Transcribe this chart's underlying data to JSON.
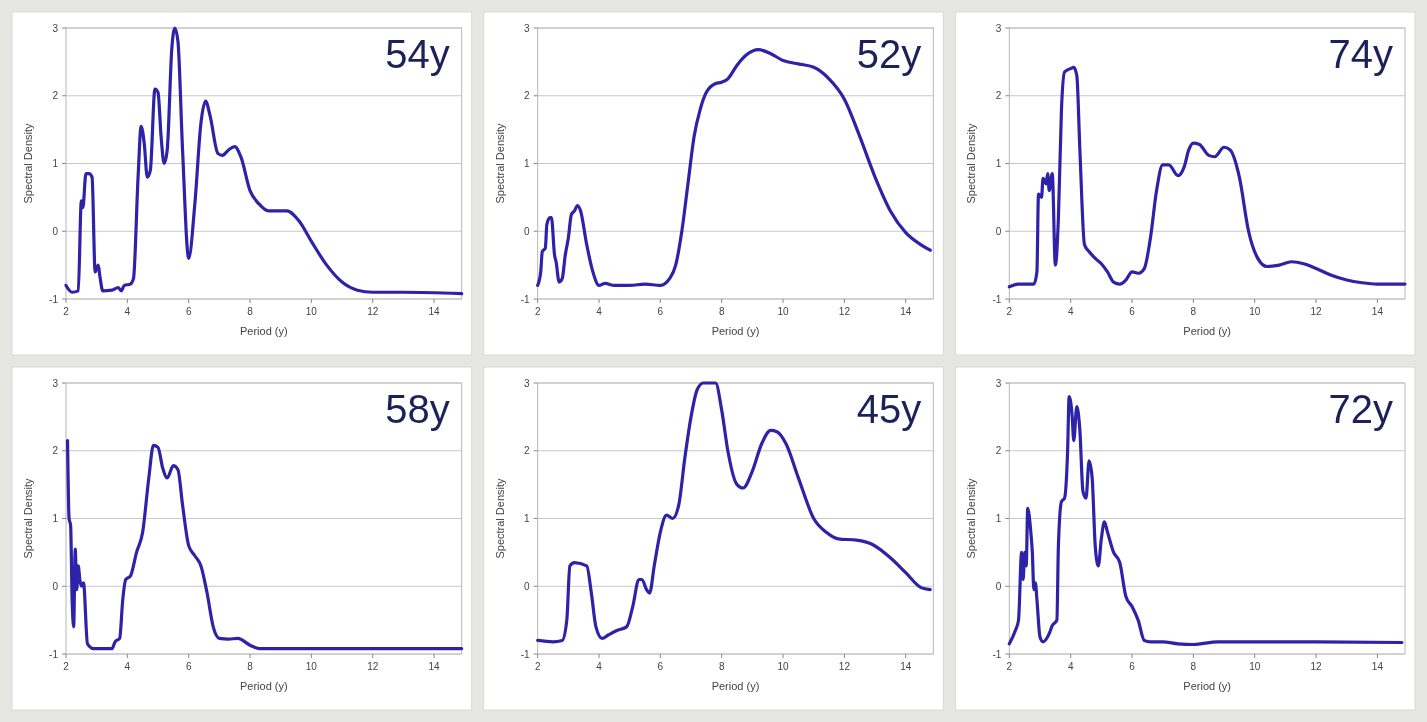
{
  "chart_data": [
    {
      "type": "line",
      "title": "54y",
      "xlabel": "Period (y)",
      "ylabel": "Spectral Density",
      "xlim": [
        2,
        14.9
      ],
      "xticks": [
        2,
        4,
        6,
        8,
        10,
        12,
        14
      ],
      "ylim": [
        -1,
        3
      ],
      "yticks": [
        -1,
        0,
        1,
        2,
        3
      ],
      "grid": "y",
      "line_style": "solid",
      "series": [
        {
          "color": "#2e22a8",
          "x": [
            2,
            2.2,
            2.4,
            2.5,
            2.55,
            2.65,
            2.75,
            2.85,
            2.95,
            3.05,
            3.1,
            3.2,
            3.5,
            3.7,
            3.8,
            3.9,
            4.1,
            4.2,
            4.35,
            4.45,
            4.55,
            4.65,
            4.75,
            4.9,
            5,
            5.1,
            5.2,
            5.3,
            5.45,
            5.55,
            5.65,
            5.8,
            6,
            6.2,
            6.4,
            6.55,
            6.7,
            6.95,
            7.1,
            7.3,
            7.5,
            7.7,
            8,
            8.3,
            8.6,
            9.2,
            9.6,
            10,
            10.5,
            11,
            11.5,
            12,
            13,
            14.9
          ],
          "values": [
            -0.8,
            -0.9,
            -0.88,
            0.45,
            0.35,
            0.85,
            0.85,
            0.8,
            -0.6,
            -0.5,
            -0.65,
            -0.88,
            -0.87,
            -0.83,
            -0.88,
            -0.8,
            -0.78,
            -0.7,
            0.8,
            1.55,
            1.3,
            0.8,
            0.9,
            2.1,
            2.05,
            1.4,
            1,
            1.2,
            2.7,
            3,
            2.8,
            1.2,
            -0.4,
            0.4,
            1.6,
            1.92,
            1.7,
            1.15,
            1.12,
            1.2,
            1.25,
            1.1,
            0.6,
            0.4,
            0.3,
            0.3,
            0.15,
            -0.15,
            -0.5,
            -0.75,
            -0.87,
            -0.9,
            -0.9,
            -0.92
          ]
        }
      ]
    },
    {
      "type": "line",
      "title": "52y",
      "xlabel": "Period (y)",
      "ylabel": "Spectral Density",
      "xlim": [
        2,
        14.9
      ],
      "xticks": [
        2,
        4,
        6,
        8,
        10,
        12,
        14
      ],
      "ylim": [
        -1,
        3
      ],
      "yticks": [
        -1,
        0,
        1,
        2,
        3
      ],
      "grid": "y",
      "line_style": "solid",
      "series": [
        {
          "color": "#2e22a8",
          "x": [
            2,
            2.1,
            2.15,
            2.25,
            2.3,
            2.4,
            2.45,
            2.55,
            2.6,
            2.7,
            2.8,
            2.9,
            3,
            3.1,
            3.2,
            3.3,
            3.4,
            3.6,
            3.8,
            4,
            4.2,
            4.5,
            5,
            5.5,
            6,
            6.3,
            6.5,
            6.7,
            6.9,
            7.1,
            7.3,
            7.5,
            7.8,
            8,
            8.2,
            8.5,
            8.8,
            9.2,
            9.6,
            10,
            10.5,
            11,
            11.5,
            12,
            12.5,
            13,
            13.5,
            14,
            14.5,
            14.8
          ],
          "values": [
            -0.8,
            -0.6,
            -0.3,
            -0.25,
            0.1,
            0.2,
            0.2,
            -0.35,
            -0.45,
            -0.75,
            -0.7,
            -0.35,
            -0.1,
            0.25,
            0.3,
            0.38,
            0.3,
            -0.2,
            -0.6,
            -0.8,
            -0.77,
            -0.8,
            -0.8,
            -0.78,
            -0.8,
            -0.7,
            -0.5,
            0,
            0.7,
            1.4,
            1.8,
            2.05,
            2.18,
            2.2,
            2.25,
            2.45,
            2.6,
            2.68,
            2.62,
            2.52,
            2.47,
            2.42,
            2.25,
            1.95,
            1.4,
            0.8,
            0.3,
            -0.02,
            -0.2,
            -0.28
          ]
        }
      ]
    },
    {
      "type": "line",
      "title": "74y",
      "xlabel": "Period (y)",
      "ylabel": "Spectral Density",
      "xlim": [
        2,
        14.9
      ],
      "xticks": [
        2,
        4,
        6,
        8,
        10,
        12,
        14
      ],
      "ylim": [
        -1,
        3
      ],
      "yticks": [
        -1,
        0,
        1,
        2,
        3
      ],
      "grid": "y",
      "line_style": "solid",
      "series": [
        {
          "color": "#2e22a8",
          "x": [
            2,
            2.3,
            2.8,
            2.9,
            2.95,
            3.05,
            3.1,
            3.2,
            3.25,
            3.3,
            3.4,
            3.5,
            3.6,
            3.7,
            3.8,
            4,
            4.1,
            4.2,
            4.3,
            4.45,
            4.6,
            4.8,
            5,
            5.2,
            5.4,
            5.6,
            5.8,
            6,
            6.2,
            6.4,
            6.6,
            6.8,
            7,
            7.2,
            7.5,
            7.7,
            7.85,
            8,
            8.2,
            8.5,
            8.7,
            9,
            9.2,
            9.5,
            9.8,
            10.1,
            10.4,
            10.8,
            11.2,
            11.6,
            12,
            12.5,
            13,
            13.5,
            14,
            14.9
          ],
          "values": [
            -0.82,
            -0.78,
            -0.78,
            -0.6,
            0.55,
            0.5,
            0.78,
            0.7,
            0.85,
            0.6,
            0.85,
            -0.5,
            0.2,
            1.8,
            2.35,
            2.4,
            2.42,
            2.3,
            1.2,
            -0.2,
            -0.3,
            -0.4,
            -0.48,
            -0.6,
            -0.75,
            -0.78,
            -0.72,
            -0.6,
            -0.62,
            -0.55,
            -0.1,
            0.6,
            0.98,
            0.98,
            0.82,
            0.95,
            1.2,
            1.3,
            1.28,
            1.12,
            1.1,
            1.24,
            1.2,
            0.8,
            0,
            -0.4,
            -0.52,
            -0.5,
            -0.45,
            -0.48,
            -0.55,
            -0.65,
            -0.72,
            -0.76,
            -0.78,
            -0.78
          ]
        }
      ]
    },
    {
      "type": "line",
      "title": "58y",
      "xlabel": "Period (y)",
      "ylabel": "Spectral Density",
      "xlim": [
        2,
        14.9
      ],
      "xticks": [
        2,
        4,
        6,
        8,
        10,
        12,
        14
      ],
      "ylim": [
        -1,
        3
      ],
      "yticks": [
        -1,
        0,
        1,
        2,
        3
      ],
      "grid": "y",
      "line_style": "solid",
      "series": [
        {
          "color": "#2e22a8",
          "x": [
            2.05,
            2.1,
            2.15,
            2.2,
            2.25,
            2.3,
            2.35,
            2.4,
            2.45,
            2.5,
            2.57,
            2.7,
            2.9,
            3.5,
            3.6,
            3.75,
            3.85,
            3.95,
            4.1,
            4.3,
            4.5,
            4.7,
            4.85,
            5,
            5.15,
            5.3,
            5.5,
            5.65,
            5.8,
            6,
            6.2,
            6.4,
            6.6,
            6.8,
            7,
            7.3,
            7.6,
            8,
            8.3,
            9,
            14.9
          ],
          "values": [
            2.15,
            1,
            0.9,
            -0.2,
            -0.6,
            0.55,
            -0.05,
            0.3,
            0.1,
            0,
            0.05,
            -0.85,
            -0.92,
            -0.92,
            -0.82,
            -0.77,
            -0.2,
            0.1,
            0.15,
            0.5,
            0.8,
            1.6,
            2.08,
            2.05,
            1.75,
            1.6,
            1.78,
            1.72,
            1.2,
            0.6,
            0.45,
            0.3,
            -0.1,
            -0.6,
            -0.77,
            -0.78,
            -0.77,
            -0.87,
            -0.92,
            -0.92,
            -0.92
          ]
        }
      ]
    },
    {
      "type": "line",
      "title": "45y",
      "xlabel": "Period (y)",
      "ylabel": "Spectral Density",
      "xlim": [
        2,
        14.9
      ],
      "xticks": [
        2,
        4,
        6,
        8,
        10,
        12,
        14
      ],
      "ylim": [
        -1,
        3
      ],
      "yticks": [
        -1,
        0,
        1,
        2,
        3
      ],
      "grid": "y",
      "line_style": "solid",
      "series": [
        {
          "color": "#2e22a8",
          "x": [
            2,
            2.5,
            2.8,
            2.95,
            3.05,
            3.2,
            3.6,
            3.75,
            3.9,
            4.1,
            4.3,
            4.6,
            4.9,
            5.1,
            5.3,
            5.4,
            5.55,
            5.65,
            5.8,
            6,
            6.2,
            6.4,
            6.6,
            6.8,
            7,
            7.2,
            7.4,
            7.8,
            8,
            8.2,
            8.5,
            8.7,
            9,
            9.3,
            9.6,
            9.8,
            10.1,
            10.5,
            11,
            11.4,
            11.8,
            12.4,
            12.9,
            13.5,
            14,
            14.5,
            14.8
          ],
          "values": [
            -0.8,
            -0.82,
            -0.8,
            -0.5,
            0.3,
            0.35,
            0.3,
            -0.1,
            -0.6,
            -0.77,
            -0.72,
            -0.65,
            -0.6,
            -0.3,
            0.1,
            0.1,
            -0.05,
            -0.1,
            0.3,
            0.8,
            1.05,
            1,
            1.2,
            1.9,
            2.5,
            2.9,
            3,
            3,
            2.6,
            2,
            1.5,
            1.45,
            1.7,
            2.1,
            2.3,
            2.28,
            2.1,
            1.6,
            1,
            0.8,
            0.7,
            0.68,
            0.62,
            0.42,
            0.2,
            -0.02,
            -0.05
          ]
        }
      ]
    },
    {
      "type": "line",
      "title": "72y",
      "xlabel": "Period (y)",
      "ylabel": "Spectral Density",
      "xlim": [
        2,
        14.9
      ],
      "xticks": [
        2,
        4,
        6,
        8,
        10,
        12,
        14
      ],
      "ylim": [
        -1,
        3
      ],
      "yticks": [
        -1,
        0,
        1,
        2,
        3
      ],
      "grid": "y",
      "line_style": "solid",
      "series": [
        {
          "color": "#2e22a8",
          "x": [
            2,
            2.2,
            2.3,
            2.4,
            2.45,
            2.5,
            2.55,
            2.6,
            2.7,
            2.75,
            2.8,
            2.85,
            2.9,
            3,
            3.1,
            3.3,
            3.4,
            3.55,
            3.6,
            3.7,
            3.8,
            3.9,
            3.95,
            4.05,
            4.1,
            4.2,
            4.3,
            4.4,
            4.5,
            4.6,
            4.7,
            4.8,
            4.9,
            5,
            5.1,
            5.2,
            5.4,
            5.6,
            5.8,
            6,
            6.2,
            6.4,
            6.6,
            7,
            7.5,
            8,
            8.8,
            10,
            12,
            14.8
          ],
          "values": [
            -0.85,
            -0.65,
            -0.5,
            0.5,
            0.1,
            0.5,
            0.3,
            1.15,
            0.8,
            0.5,
            -0.05,
            0.05,
            -0.2,
            -0.75,
            -0.82,
            -0.7,
            -0.58,
            -0.5,
            0.6,
            1.25,
            1.3,
            2,
            2.8,
            2.5,
            2.15,
            2.65,
            2.3,
            1.4,
            1.3,
            1.85,
            1.6,
            0.6,
            0.3,
            0.7,
            0.95,
            0.8,
            0.5,
            0.35,
            -0.15,
            -0.3,
            -0.5,
            -0.8,
            -0.82,
            -0.82,
            -0.85,
            -0.86,
            -0.82,
            -0.82,
            -0.82,
            -0.83
          ]
        }
      ]
    }
  ]
}
